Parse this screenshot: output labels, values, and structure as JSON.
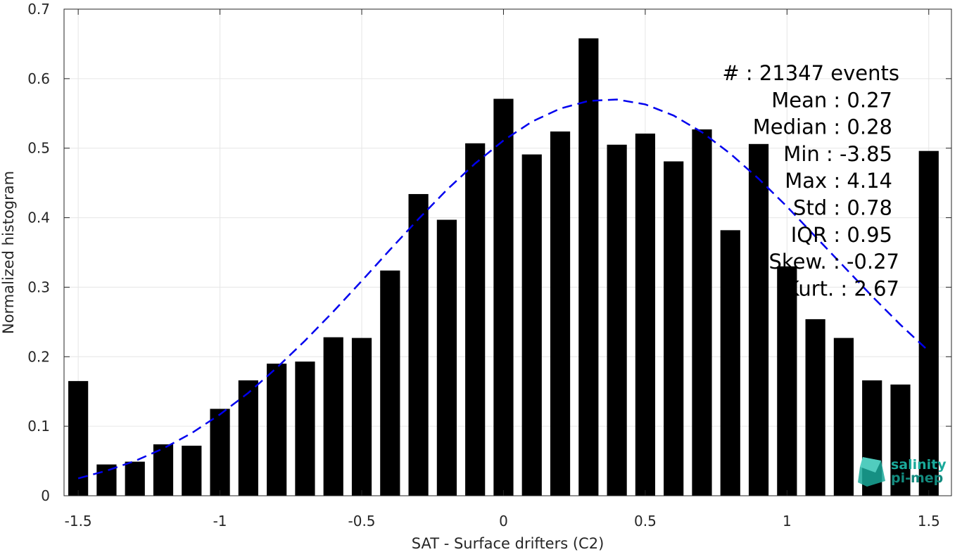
{
  "chart_data": {
    "type": "bar",
    "xlabel": "SAT - Surface drifters (C2)",
    "ylabel": "Normalized histogram",
    "xlim": [
      -1.55,
      1.58
    ],
    "ylim": [
      0,
      0.7
    ],
    "grid": true,
    "x_ticks": [
      -1.5,
      -1,
      -0.5,
      0,
      0.5,
      1,
      1.5
    ],
    "x_tick_labels": [
      "-1.5",
      "-1",
      "-0.5",
      "0",
      "0.5",
      "1",
      "1.5"
    ],
    "y_ticks": [
      0,
      0.1,
      0.2,
      0.3,
      0.4,
      0.5,
      0.6,
      0.7
    ],
    "y_tick_labels": [
      "0",
      "0.1",
      "0.2",
      "0.3",
      "0.4",
      "0.5",
      "0.6",
      "0.7"
    ],
    "bar_width": 0.07,
    "x": [
      -1.5,
      -1.4,
      -1.3,
      -1.2,
      -1.1,
      -1.0,
      -0.9,
      -0.8,
      -0.7,
      -0.6,
      -0.5,
      -0.4,
      -0.3,
      -0.2,
      -0.1,
      0.0,
      0.1,
      0.2,
      0.3,
      0.4,
      0.5,
      0.6,
      0.7,
      0.8,
      0.9,
      1.0,
      1.1,
      1.2,
      1.3,
      1.4,
      1.5
    ],
    "values": [
      0.165,
      0.045,
      0.049,
      0.074,
      0.072,
      0.125,
      0.166,
      0.19,
      0.193,
      0.228,
      0.227,
      0.324,
      0.434,
      0.397,
      0.507,
      0.571,
      0.491,
      0.524,
      0.658,
      0.505,
      0.521,
      0.481,
      0.527,
      0.382,
      0.506,
      0.33,
      0.254,
      0.227,
      0.166,
      0.16,
      0.496
    ],
    "fit": {
      "style": "dashed",
      "color": "#0000ee",
      "x": [
        -1.5,
        -1.4,
        -1.3,
        -1.2,
        -1.1,
        -1.0,
        -0.9,
        -0.8,
        -0.7,
        -0.6,
        -0.5,
        -0.4,
        -0.3,
        -0.2,
        -0.1,
        0.0,
        0.1,
        0.2,
        0.3,
        0.4,
        0.5,
        0.6,
        0.7,
        0.8,
        0.9,
        1.0,
        1.1,
        1.2,
        1.3,
        1.4,
        1.5
      ],
      "y": [
        0.025,
        0.036,
        0.05,
        0.068,
        0.09,
        0.117,
        0.148,
        0.184,
        0.223,
        0.265,
        0.309,
        0.354,
        0.398,
        0.44,
        0.478,
        0.511,
        0.538,
        0.557,
        0.568,
        0.57,
        0.563,
        0.547,
        0.523,
        0.492,
        0.456,
        0.416,
        0.373,
        0.33,
        0.287,
        0.246,
        0.208
      ]
    },
    "stats": [
      {
        "label": "#  : 21347 events"
      },
      {
        "label": "Mean : 0.27"
      },
      {
        "label": "Median : 0.28"
      },
      {
        "label": "Min : -3.85"
      },
      {
        "label": "Max : 4.14"
      },
      {
        "label": "Std : 0.78"
      },
      {
        "label": "IQR : 0.95"
      },
      {
        "label": "Skew. : -0.27"
      },
      {
        "label": "Kurt. : 2.67"
      }
    ],
    "colors": {
      "bars": "#000000",
      "grid": "#e6e6e6",
      "axes": "#262626",
      "logo": "#1aa99a"
    }
  },
  "logo": {
    "line1": "salinity",
    "line2": "pi-mep"
  }
}
